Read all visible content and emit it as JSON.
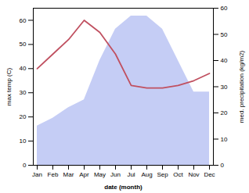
{
  "chart_data": {
    "type": "line",
    "categories": [
      "Jan",
      "Feb",
      "Mar",
      "Apr",
      "May",
      "Jun",
      "Jul",
      "Aug",
      "Sep",
      "Oct",
      "Nov",
      "Dec"
    ],
    "xlabel": "date (month)",
    "ylabel": "max temp (C)",
    "y2label": "med. precipitation (kg/m2)",
    "ylim": [
      0,
      65
    ],
    "yticks": [
      0,
      10,
      20,
      30,
      40,
      50,
      60
    ],
    "y2lim": [
      0,
      60
    ],
    "y2ticks": [
      0,
      10,
      20,
      30,
      40,
      50,
      60
    ],
    "series": [
      {
        "type": "area",
        "color": "#c5cdf5",
        "axis": "y2",
        "values": [
          15,
          18,
          22,
          25,
          40,
          52,
          57,
          57,
          52,
          40,
          28,
          28
        ]
      },
      {
        "type": "line",
        "color": "#c05060",
        "values": [
          40,
          46,
          52,
          60,
          55,
          46,
          33,
          32,
          32,
          33,
          35,
          38
        ]
      }
    ]
  }
}
